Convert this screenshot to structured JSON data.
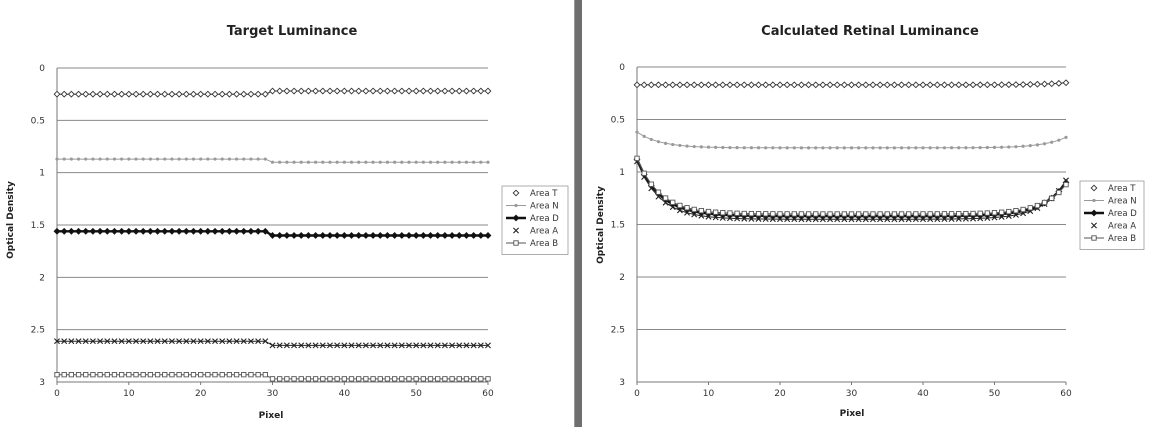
{
  "chart_data": [
    {
      "type": "line",
      "title": "Target Luminance",
      "xlabel": "Pixel",
      "ylabel": "Optical Density",
      "xlim": [
        0,
        60
      ],
      "ylim": [
        0,
        3
      ],
      "y_inverted": true,
      "xticks": [
        "0",
        "10",
        "20",
        "30",
        "40",
        "50",
        "60"
      ],
      "yticks": [
        "0",
        "0.5",
        "1",
        "1.5",
        "2",
        "2.5",
        "3"
      ],
      "grid": "horizontal",
      "legend_position": "right",
      "series": [
        {
          "name": "Area T",
          "marker": "diamond",
          "color": "#333333",
          "segments": [
            {
              "x0": 0,
              "x1": 29,
              "y": 0.25
            },
            {
              "x0": 30,
              "x1": 60,
              "y": 0.22
            }
          ]
        },
        {
          "name": "Area N",
          "marker": "small-dot",
          "color": "#9a9a9a",
          "segments": [
            {
              "x0": 0,
              "x1": 29,
              "y": 0.87
            },
            {
              "x0": 30,
              "x1": 60,
              "y": 0.9
            }
          ]
        },
        {
          "name": "Area D",
          "marker": "filled-bold",
          "color": "#111111",
          "segments": [
            {
              "x0": 0,
              "x1": 29,
              "y": 1.56
            },
            {
              "x0": 30,
              "x1": 60,
              "y": 1.6
            }
          ]
        },
        {
          "name": "Area A",
          "marker": "x",
          "color": "#222222",
          "segments": [
            {
              "x0": 0,
              "x1": 29,
              "y": 2.61
            },
            {
              "x0": 30,
              "x1": 60,
              "y": 2.65
            }
          ]
        },
        {
          "name": "Area B",
          "marker": "square",
          "color": "#555555",
          "segments": [
            {
              "x0": 0,
              "x1": 29,
              "y": 2.93
            },
            {
              "x0": 30,
              "x1": 60,
              "y": 2.97
            }
          ]
        }
      ]
    },
    {
      "type": "line",
      "title": "Calculated Retinal Luminance",
      "xlabel": "Pixel",
      "ylabel": "Optical Density",
      "xlim": [
        0,
        60
      ],
      "ylim": [
        0,
        3
      ],
      "y_inverted": true,
      "xticks": [
        "0",
        "10",
        "20",
        "30",
        "40",
        "50",
        "60"
      ],
      "yticks": [
        "0",
        "0.5",
        "1",
        "1.5",
        "2",
        "2.5",
        "3"
      ],
      "grid": "horizontal",
      "legend_position": "right",
      "series": [
        {
          "name": "Area T",
          "marker": "diamond",
          "color": "#333333",
          "curve": {
            "edge": 0.17,
            "center": 0.17,
            "end_left": 0.17,
            "end_right": 0.15
          }
        },
        {
          "name": "Area N",
          "marker": "small-dot",
          "color": "#9a9a9a",
          "curve": {
            "edge": 0.62,
            "center": 0.77,
            "end_left": 0.62,
            "end_right": 0.67
          }
        },
        {
          "name": "Area D",
          "marker": "filled-bold",
          "color": "#111111",
          "curve": {
            "edge": 0.88,
            "center": 1.42,
            "end_left": 0.88,
            "end_right": 1.1
          }
        },
        {
          "name": "Area A",
          "marker": "x",
          "color": "#222222",
          "curve": {
            "edge": 0.9,
            "center": 1.45,
            "end_left": 0.9,
            "end_right": 1.08
          }
        },
        {
          "name": "Area B",
          "marker": "square",
          "color": "#555555",
          "curve": {
            "edge": 0.87,
            "center": 1.4,
            "end_left": 0.87,
            "end_right": 1.12
          }
        }
      ]
    }
  ]
}
